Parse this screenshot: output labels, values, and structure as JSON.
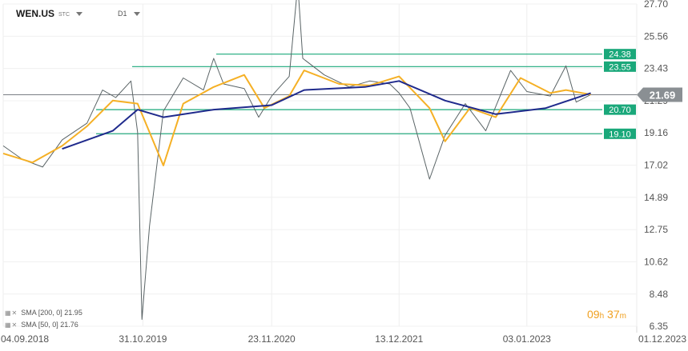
{
  "header": {
    "symbol": "WEN.US",
    "symbol_suffix": "STC",
    "timeframe": "D1"
  },
  "legend": [
    {
      "label": "SMA [200, 0] 21.95"
    },
    {
      "label": "SMA [50, 0] 21.76"
    }
  ],
  "timer": {
    "hours": "09",
    "h": "h",
    "minutes": "37",
    "m": "m"
  },
  "colors": {
    "price": "#5a6466",
    "sma50": "#f5b025",
    "sma200": "#1f2a8c",
    "levels": "#1aa87a",
    "current": "#8a8f93"
  },
  "chart_data": {
    "type": "line",
    "title": "",
    "x_ticks": [
      "04.09.2018",
      "31.10.2019",
      "23.11.2020",
      "13.12.2021",
      "03.01.2023",
      "01.12.2023"
    ],
    "y_ticks": [
      27.7,
      25.56,
      23.43,
      21.29,
      19.16,
      17.02,
      14.89,
      12.75,
      10.62,
      8.48,
      6.35
    ],
    "ylim": [
      6.35,
      27.7
    ],
    "xlim": [
      "04.09.2018",
      "01.12.2023"
    ],
    "current_price": 21.69,
    "horizontal_levels": [
      24.38,
      23.55,
      20.7,
      19.1
    ],
    "series": [
      {
        "name": "",
        "values": [
          [
            "04.09.2018",
            18.3
          ],
          [
            "01.11.2018",
            17.4
          ],
          [
            "01.01.2019",
            16.9
          ],
          [
            "01.03.2019",
            18.7
          ],
          [
            "15.05.2019",
            19.8
          ],
          [
            "01.07.2019",
            22.0
          ],
          [
            "10.08.2019",
            21.5
          ],
          [
            "25.09.2019",
            22.6
          ],
          [
            "15.10.2019",
            19.2
          ],
          [
            "28.10.2019",
            6.8
          ],
          [
            "20.11.2019",
            13.0
          ],
          [
            "01.01.2020",
            20.6
          ],
          [
            "01.03.2020",
            22.8
          ],
          [
            "01.05.2020",
            22.0
          ],
          [
            "01.06.2020",
            24.1
          ],
          [
            "01.07.2020",
            22.4
          ],
          [
            "01.09.2020",
            22.1
          ],
          [
            "15.10.2020",
            20.2
          ],
          [
            "23.11.2020",
            21.6
          ],
          [
            "15.01.2021",
            22.9
          ],
          [
            "10.02.2021",
            29.0
          ],
          [
            "25.02.2021",
            24.1
          ],
          [
            "01.05.2021",
            23.0
          ],
          [
            "15.07.2021",
            22.2
          ],
          [
            "15.09.2021",
            22.6
          ],
          [
            "15.11.2021",
            22.4
          ],
          [
            "13.12.2021",
            21.8
          ],
          [
            "15.01.2022",
            20.8
          ],
          [
            "15.03.2022",
            16.1
          ],
          [
            "01.05.2022",
            19.0
          ],
          [
            "01.07.2022",
            21.1
          ],
          [
            "01.09.2022",
            19.3
          ],
          [
            "15.11.2022",
            23.3
          ],
          [
            "03.01.2023",
            21.9
          ],
          [
            "15.03.2023",
            21.6
          ],
          [
            "01.05.2023",
            23.6
          ],
          [
            "01.06.2023",
            21.2
          ],
          [
            "15.07.2023",
            21.7
          ]
        ]
      },
      {
        "name": "SMA [50, 0]",
        "values": [
          [
            "04.09.2018",
            17.8
          ],
          [
            "01.12.2018",
            17.2
          ],
          [
            "01.03.2019",
            18.3
          ],
          [
            "15.05.2019",
            19.6
          ],
          [
            "01.08.2019",
            21.3
          ],
          [
            "15.10.2019",
            21.1
          ],
          [
            "01.01.2020",
            17.0
          ],
          [
            "01.03.2020",
            21.1
          ],
          [
            "01.06.2020",
            22.2
          ],
          [
            "01.09.2020",
            23.0
          ],
          [
            "01.11.2020",
            20.8
          ],
          [
            "15.01.2021",
            21.6
          ],
          [
            "01.03.2021",
            23.3
          ],
          [
            "15.06.2021",
            22.4
          ],
          [
            "15.09.2021",
            22.3
          ],
          [
            "13.12.2021",
            22.9
          ],
          [
            "15.03.2022",
            20.8
          ],
          [
            "01.05.2022",
            18.6
          ],
          [
            "15.07.2022",
            20.8
          ],
          [
            "01.10.2022",
            20.2
          ],
          [
            "15.12.2022",
            22.8
          ],
          [
            "15.03.2023",
            21.8
          ],
          [
            "01.05.2023",
            22.0
          ],
          [
            "15.07.2023",
            21.7
          ]
        ]
      },
      {
        "name": "SMA [200, 0]",
        "values": [
          [
            "01.03.2019",
            18.1
          ],
          [
            "01.08.2019",
            19.3
          ],
          [
            "15.10.2019",
            20.7
          ],
          [
            "01.01.2020",
            20.2
          ],
          [
            "01.06.2020",
            20.7
          ],
          [
            "23.11.2020",
            21.0
          ],
          [
            "01.03.2021",
            22.0
          ],
          [
            "01.09.2021",
            22.2
          ],
          [
            "13.12.2021",
            22.6
          ],
          [
            "01.05.2022",
            21.3
          ],
          [
            "01.10.2022",
            20.4
          ],
          [
            "01.03.2023",
            20.8
          ],
          [
            "15.07.2023",
            21.8
          ]
        ]
      }
    ]
  }
}
